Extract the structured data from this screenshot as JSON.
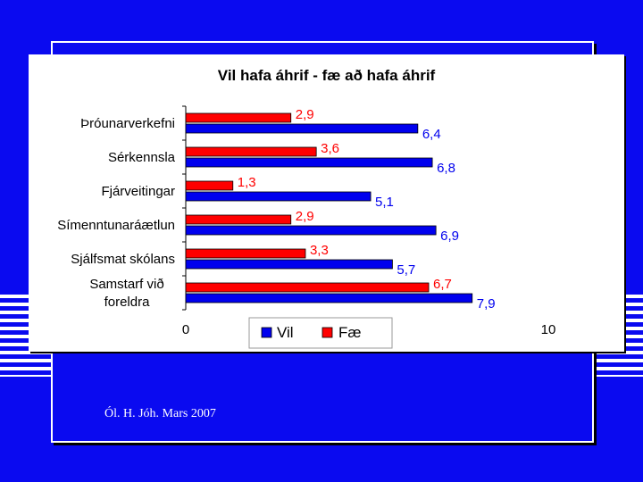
{
  "slide": {
    "footer_text": "Ól. H. Jóh. Mars 2007",
    "background_color": "#0a0af0"
  },
  "chart_data": {
    "type": "bar",
    "orientation": "horizontal",
    "title": "Vil hafa áhrif - fæ að hafa áhrif",
    "categories": [
      "Þróunarverkefni",
      "Sérkennsla",
      "Fjárveitingar",
      "Símenntunaráætlun",
      "Sjálfsmat skólans",
      "Samstarf við foreldra"
    ],
    "series": [
      {
        "name": "Vil",
        "color": "#0000ee",
        "values": [
          6.4,
          6.8,
          5.1,
          6.9,
          5.7,
          7.9
        ],
        "labels": [
          "6,4",
          "6,8",
          "5,1",
          "6,9",
          "5,7",
          "7,9"
        ]
      },
      {
        "name": "Fæ",
        "color": "#ff0000",
        "values": [
          2.9,
          3.6,
          1.3,
          2.9,
          3.3,
          6.7
        ],
        "labels": [
          "2,9",
          "3,6",
          "1,3",
          "2,9",
          "3,3",
          "6,7"
        ]
      }
    ],
    "xlim": [
      0,
      10
    ],
    "xticks": [
      "0",
      "10"
    ],
    "grid": false,
    "legend_position": "bottom"
  }
}
